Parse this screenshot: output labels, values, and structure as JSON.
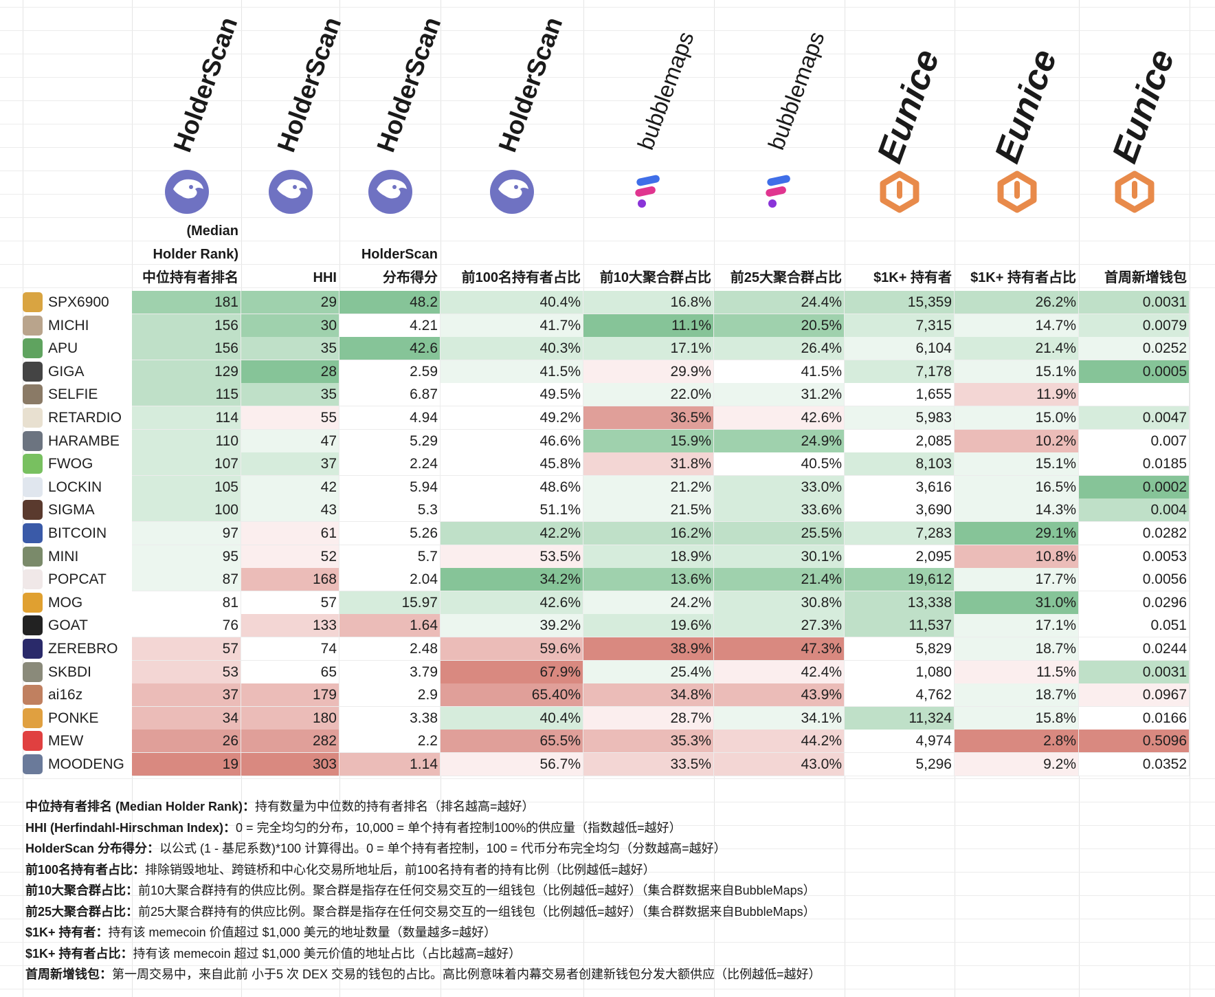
{
  "brands": [
    {
      "label": "HolderScan",
      "style": "holderscan"
    },
    {
      "label": "HolderScan",
      "style": "holderscan"
    },
    {
      "label": "HolderScan",
      "style": "holderscan"
    },
    {
      "label": "HolderScan",
      "style": "holderscan"
    },
    {
      "label": "bubblemaps",
      "style": "bubblemaps"
    },
    {
      "label": "bubblemaps",
      "style": "bubblemaps"
    },
    {
      "label": "Eunice",
      "style": "eunice"
    },
    {
      "label": "Eunice",
      "style": "eunice"
    },
    {
      "label": "Eunice",
      "style": "eunice"
    }
  ],
  "headers": [
    {
      "lines": [
        "(Median",
        "Holder Rank)",
        "中位持有者排名"
      ]
    },
    {
      "lines": [
        "HHI"
      ]
    },
    {
      "lines": [
        "HolderScan",
        "分布得分"
      ]
    },
    {
      "lines": [
        "前100名持有者占比"
      ]
    },
    {
      "lines": [
        "前10大聚合群占比"
      ]
    },
    {
      "lines": [
        "前25大聚合群占比"
      ]
    },
    {
      "lines": [
        "$1K+ 持有者"
      ]
    },
    {
      "lines": [
        "$1K+ 持有者占比"
      ]
    },
    {
      "lines": [
        "首周新增钱包"
      ]
    }
  ],
  "rows": [
    {
      "token": "SPX6900",
      "avatar": "#d9a441",
      "values": [
        "181",
        "29",
        "48.2",
        "40.4%",
        "16.8%",
        "24.4%",
        "15,359",
        "26.2%",
        "0.0031"
      ]
    },
    {
      "token": "MICHI",
      "avatar": "#b9a48c",
      "values": [
        "156",
        "30",
        "4.21",
        "41.7%",
        "11.1%",
        "20.5%",
        "7,315",
        "14.7%",
        "0.0079"
      ]
    },
    {
      "token": "APU",
      "avatar": "#5fa35f",
      "values": [
        "156",
        "35",
        "42.6",
        "40.3%",
        "17.1%",
        "26.4%",
        "6,104",
        "21.4%",
        "0.0252"
      ]
    },
    {
      "token": "GIGA",
      "avatar": "#444444",
      "values": [
        "129",
        "28",
        "2.59",
        "41.5%",
        "29.9%",
        "41.5%",
        "7,178",
        "15.1%",
        "0.0005"
      ]
    },
    {
      "token": "SELFIE",
      "avatar": "#8a7a66",
      "values": [
        "115",
        "35",
        "6.87",
        "49.5%",
        "22.0%",
        "31.2%",
        "1,655",
        "11.9%",
        ""
      ]
    },
    {
      "token": "RETARDIO",
      "avatar": "#e8e0d0",
      "values": [
        "114",
        "55",
        "4.94",
        "49.2%",
        "36.5%",
        "42.6%",
        "5,983",
        "15.0%",
        "0.0047"
      ]
    },
    {
      "token": "HARAMBE",
      "avatar": "#6c7480",
      "values": [
        "110",
        "47",
        "5.29",
        "46.6%",
        "15.9%",
        "24.9%",
        "2,085",
        "10.2%",
        "0.007"
      ]
    },
    {
      "token": "FWOG",
      "avatar": "#78c060",
      "values": [
        "107",
        "37",
        "2.24",
        "45.8%",
        "31.8%",
        "40.5%",
        "8,103",
        "15.1%",
        "0.0185"
      ]
    },
    {
      "token": "LOCKIN",
      "avatar": "#e0e6ee",
      "values": [
        "105",
        "42",
        "5.94",
        "48.6%",
        "21.2%",
        "33.0%",
        "3,616",
        "16.5%",
        "0.0002"
      ]
    },
    {
      "token": "SIGMA",
      "avatar": "#5a3a2e",
      "values": [
        "100",
        "43",
        "5.3",
        "51.1%",
        "21.5%",
        "33.6%",
        "3,690",
        "14.3%",
        "0.004"
      ]
    },
    {
      "token": "BITCOIN",
      "avatar": "#3a5aa8",
      "values": [
        "97",
        "61",
        "5.26",
        "42.2%",
        "16.2%",
        "25.5%",
        "7,283",
        "29.1%",
        "0.0282"
      ]
    },
    {
      "token": "MINI",
      "avatar": "#7a8a6a",
      "values": [
        "95",
        "52",
        "5.7",
        "53.5%",
        "18.9%",
        "30.1%",
        "2,095",
        "10.8%",
        "0.0053"
      ]
    },
    {
      "token": "POPCAT",
      "avatar": "#f0e8e8",
      "values": [
        "87",
        "168",
        "2.04",
        "34.2%",
        "13.6%",
        "21.4%",
        "19,612",
        "17.7%",
        "0.0056"
      ]
    },
    {
      "token": "MOG",
      "avatar": "#e0a030",
      "values": [
        "81",
        "57",
        "15.97",
        "42.6%",
        "24.2%",
        "30.8%",
        "13,338",
        "31.0%",
        "0.0296"
      ]
    },
    {
      "token": "GOAT",
      "avatar": "#222222",
      "values": [
        "76",
        "133",
        "1.64",
        "39.2%",
        "19.6%",
        "27.3%",
        "11,537",
        "17.1%",
        "0.051"
      ]
    },
    {
      "token": "ZEREBRO",
      "avatar": "#2a2a6a",
      "values": [
        "57",
        "74",
        "2.48",
        "59.6%",
        "38.9%",
        "47.3%",
        "5,829",
        "18.7%",
        "0.0244"
      ]
    },
    {
      "token": "SKBDI",
      "avatar": "#8a8a7a",
      "values": [
        "53",
        "65",
        "3.79",
        "67.9%",
        "25.4%",
        "42.4%",
        "1,080",
        "11.5%",
        "0.0031"
      ]
    },
    {
      "token": "ai16z",
      "avatar": "#c08060",
      "values": [
        "37",
        "179",
        "2.9",
        "65.40%",
        "34.8%",
        "43.9%",
        "4,762",
        "18.7%",
        "0.0967"
      ]
    },
    {
      "token": "PONKE",
      "avatar": "#e0a040",
      "values": [
        "34",
        "180",
        "3.38",
        "40.4%",
        "28.7%",
        "34.1%",
        "11,324",
        "15.8%",
        "0.0166"
      ]
    },
    {
      "token": "MEW",
      "avatar": "#e04040",
      "values": [
        "26",
        "282",
        "2.2",
        "65.5%",
        "35.3%",
        "44.2%",
        "4,974",
        "2.8%",
        "0.5096"
      ]
    },
    {
      "token": "MOODENG",
      "avatar": "#6a7a9a",
      "values": [
        "19",
        "303",
        "1.14",
        "56.7%",
        "33.5%",
        "43.0%",
        "5,296",
        "9.2%",
        "0.0352"
      ]
    }
  ],
  "colors": {
    "g1": "#ecf6ef",
    "g2": "#d6ecdc",
    "g3": "#bfe0c8",
    "g4": "#9fd1ad",
    "g5": "#86c498",
    "r1": "#fbeeee",
    "r2": "#f3d6d4",
    "r3": "#ebbcb8",
    "r4": "#e09f99",
    "r5": "#d98980",
    "w": "#ffffff"
  },
  "fills": [
    [
      "g4",
      "g4",
      "g5",
      "g2",
      "g2",
      "g3",
      "g3",
      "g3",
      "g3"
    ],
    [
      "g3",
      "g4",
      "w",
      "g1",
      "g5",
      "g4",
      "g2",
      "g1",
      "g2"
    ],
    [
      "g3",
      "g3",
      "g5",
      "g2",
      "g2",
      "g2",
      "g1",
      "g2",
      "g1"
    ],
    [
      "g3",
      "g5",
      "w",
      "g1",
      "r1",
      "w",
      "g2",
      "g1",
      "g5"
    ],
    [
      "g3",
      "g3",
      "w",
      "w",
      "g1",
      "g1",
      "w",
      "r2",
      "w"
    ],
    [
      "g2",
      "r1",
      "w",
      "w",
      "r4",
      "r1",
      "g1",
      "g1",
      "g2"
    ],
    [
      "g2",
      "g1",
      "w",
      "w",
      "g4",
      "g4",
      "w",
      "r3",
      "w"
    ],
    [
      "g2",
      "g2",
      "w",
      "w",
      "r2",
      "w",
      "g2",
      "g1",
      "w"
    ],
    [
      "g2",
      "g1",
      "w",
      "w",
      "g1",
      "g2",
      "w",
      "g1",
      "g5"
    ],
    [
      "g2",
      "g1",
      "w",
      "w",
      "g1",
      "g2",
      "w",
      "g1",
      "g3"
    ],
    [
      "g1",
      "r1",
      "w",
      "g3",
      "g3",
      "g3",
      "g2",
      "g5",
      "w"
    ],
    [
      "g1",
      "r1",
      "w",
      "r1",
      "g2",
      "g2",
      "w",
      "r3",
      "w"
    ],
    [
      "g1",
      "r3",
      "w",
      "g5",
      "g4",
      "g4",
      "g4",
      "g1",
      "w"
    ],
    [
      "w",
      "w",
      "g2",
      "g2",
      "g1",
      "g2",
      "g3",
      "g5",
      "w"
    ],
    [
      "w",
      "r2",
      "r3",
      "g1",
      "g2",
      "g2",
      "g3",
      "g1",
      "w"
    ],
    [
      "r2",
      "w",
      "w",
      "r3",
      "r5",
      "r5",
      "w",
      "g1",
      "w"
    ],
    [
      "r2",
      "w",
      "w",
      "r5",
      "g1",
      "r1",
      "w",
      "r1",
      "g3"
    ],
    [
      "r3",
      "r3",
      "w",
      "r4",
      "r3",
      "r3",
      "w",
      "g1",
      "r1"
    ],
    [
      "r3",
      "r3",
      "w",
      "g2",
      "r1",
      "g1",
      "g3",
      "g1",
      "w"
    ],
    [
      "r4",
      "r4",
      "w",
      "r4",
      "r3",
      "r2",
      "w",
      "r5",
      "r5"
    ],
    [
      "r5",
      "r5",
      "r3",
      "r1",
      "r2",
      "r2",
      "w",
      "r1",
      "w"
    ]
  ],
  "notes": [
    {
      "term": "中位持有者排名 (Median Holder Rank)：",
      "desc": "持有数量为中位数的持有者排名（排名越高=越好）"
    },
    {
      "term": "HHI (Herfindahl-Hirschman Index)：",
      "desc": "0 = 完全均匀的分布，10,000 = 单个持有者控制100%的供应量（指数越低=越好）"
    },
    {
      "term": "HolderScan 分布得分：",
      "desc": "以公式 (1 - 基尼系数)*100 计算得出。0 = 单个持有者控制，100 = 代币分布完全均匀（分数越高=越好）"
    },
    {
      "term": "前100名持有者占比：",
      "desc": "排除销毁地址、跨链桥和中心化交易所地址后，前100名持有者的持有比例（比例越低=越好）"
    },
    {
      "term": "前10大聚合群占比：",
      "desc": "前10大聚合群持有的供应比例。聚合群是指存在任何交易交互的一组钱包（比例越低=越好）（集合群数据来自BubbleMaps）"
    },
    {
      "term": "前25大聚合群占比：",
      "desc": "前25大聚合群持有的供应比例。聚合群是指存在任何交易交互的一组钱包（比例越低=越好）（集合群数据来自BubbleMaps）"
    },
    {
      "term": "$1K+ 持有者：",
      "desc": "持有该 memecoin 价值超过 $1,000 美元的地址数量（数量越多=越好）"
    },
    {
      "term": "$1K+ 持有者占比：",
      "desc": "持有该 memecoin 超过 $1,000 美元价值的地址占比（占比越高=越好）"
    },
    {
      "term": "首周新增钱包：",
      "desc": "第一周交易中，来自此前 小于5 次 DEX 交易的钱包的占比。高比例意味着内幕交易者创建新钱包分发大额供应（比例越低=越好）"
    }
  ]
}
